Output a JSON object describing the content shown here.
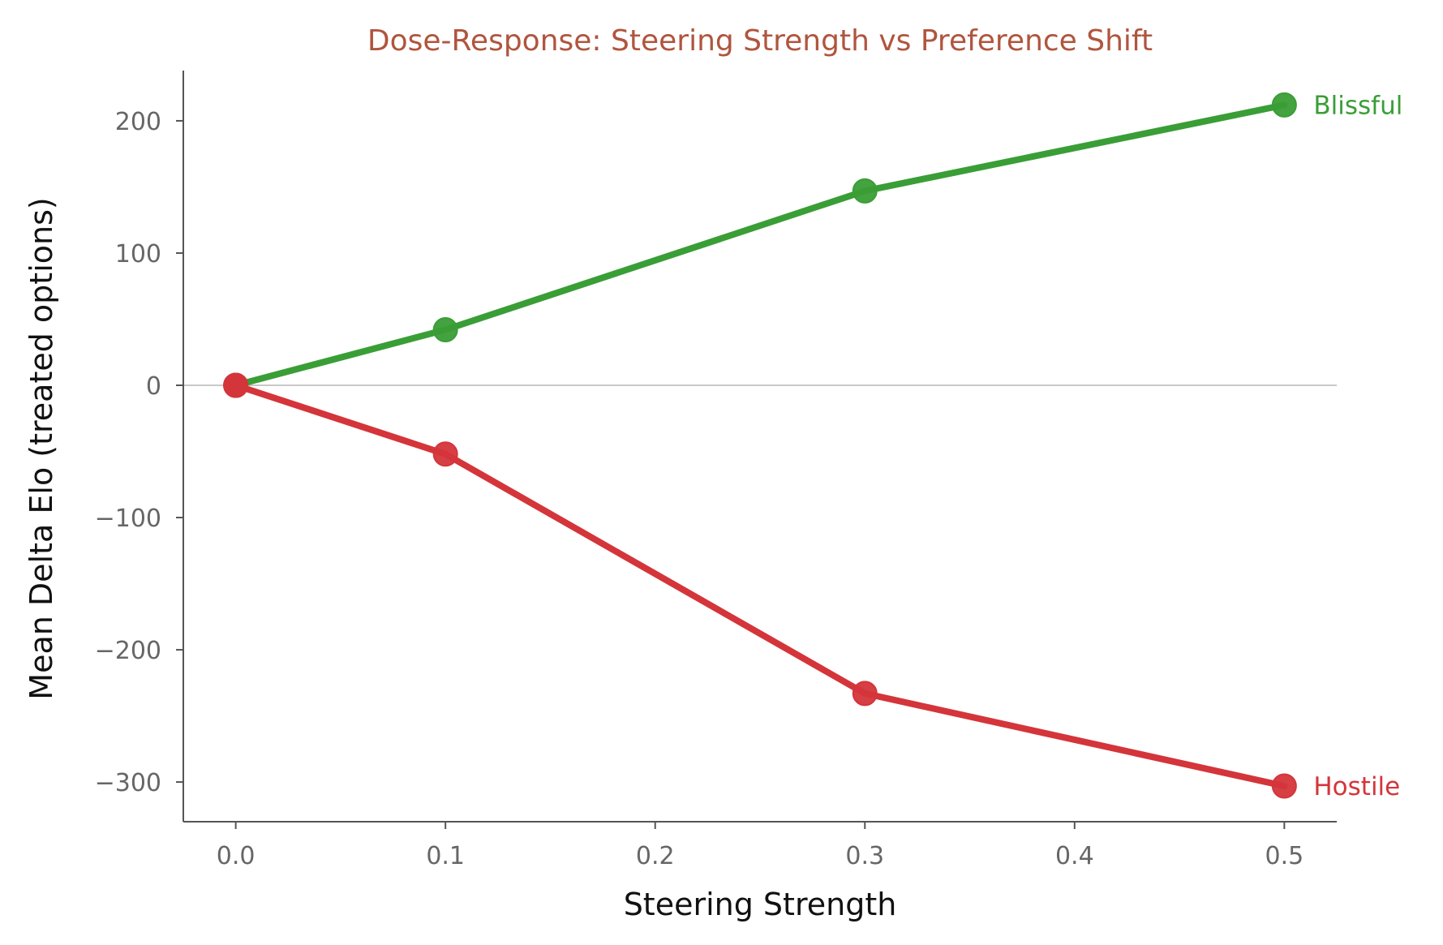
{
  "chart_data": {
    "type": "line",
    "title": "Dose-Response: Steering Strength vs Preference Shift",
    "xlabel": "Steering Strength",
    "ylabel": "Mean Delta Elo (treated options)",
    "xlim": [
      -0.025,
      0.525
    ],
    "ylim": [
      -330,
      238
    ],
    "x_ticks": [
      0.0,
      0.1,
      0.2,
      0.3,
      0.4,
      0.5
    ],
    "x_tick_labels": [
      "0.0",
      "0.1",
      "0.2",
      "0.3",
      "0.4",
      "0.5"
    ],
    "y_ticks": [
      200,
      100,
      0,
      -100,
      -200,
      -300
    ],
    "y_tick_labels": [
      "200",
      "100",
      "0",
      "−100",
      "−200",
      "−300"
    ],
    "reference_line_y": 0,
    "grid": false,
    "legend": "direct labels at line ends",
    "series": [
      {
        "name": "Blissful",
        "x": [
          0.0,
          0.1,
          0.3,
          0.5
        ],
        "y": [
          0,
          42,
          147,
          212
        ]
      },
      {
        "name": "Hostile",
        "x": [
          0.0,
          0.1,
          0.3,
          0.5
        ],
        "y": [
          0,
          -52,
          -233,
          -303
        ]
      }
    ]
  },
  "colors": {
    "title": "#b0553e",
    "Blissful": "#3a9e36",
    "Hostile": "#d4353a",
    "axis": "#555555",
    "reference_line": "#b5b5b5"
  }
}
